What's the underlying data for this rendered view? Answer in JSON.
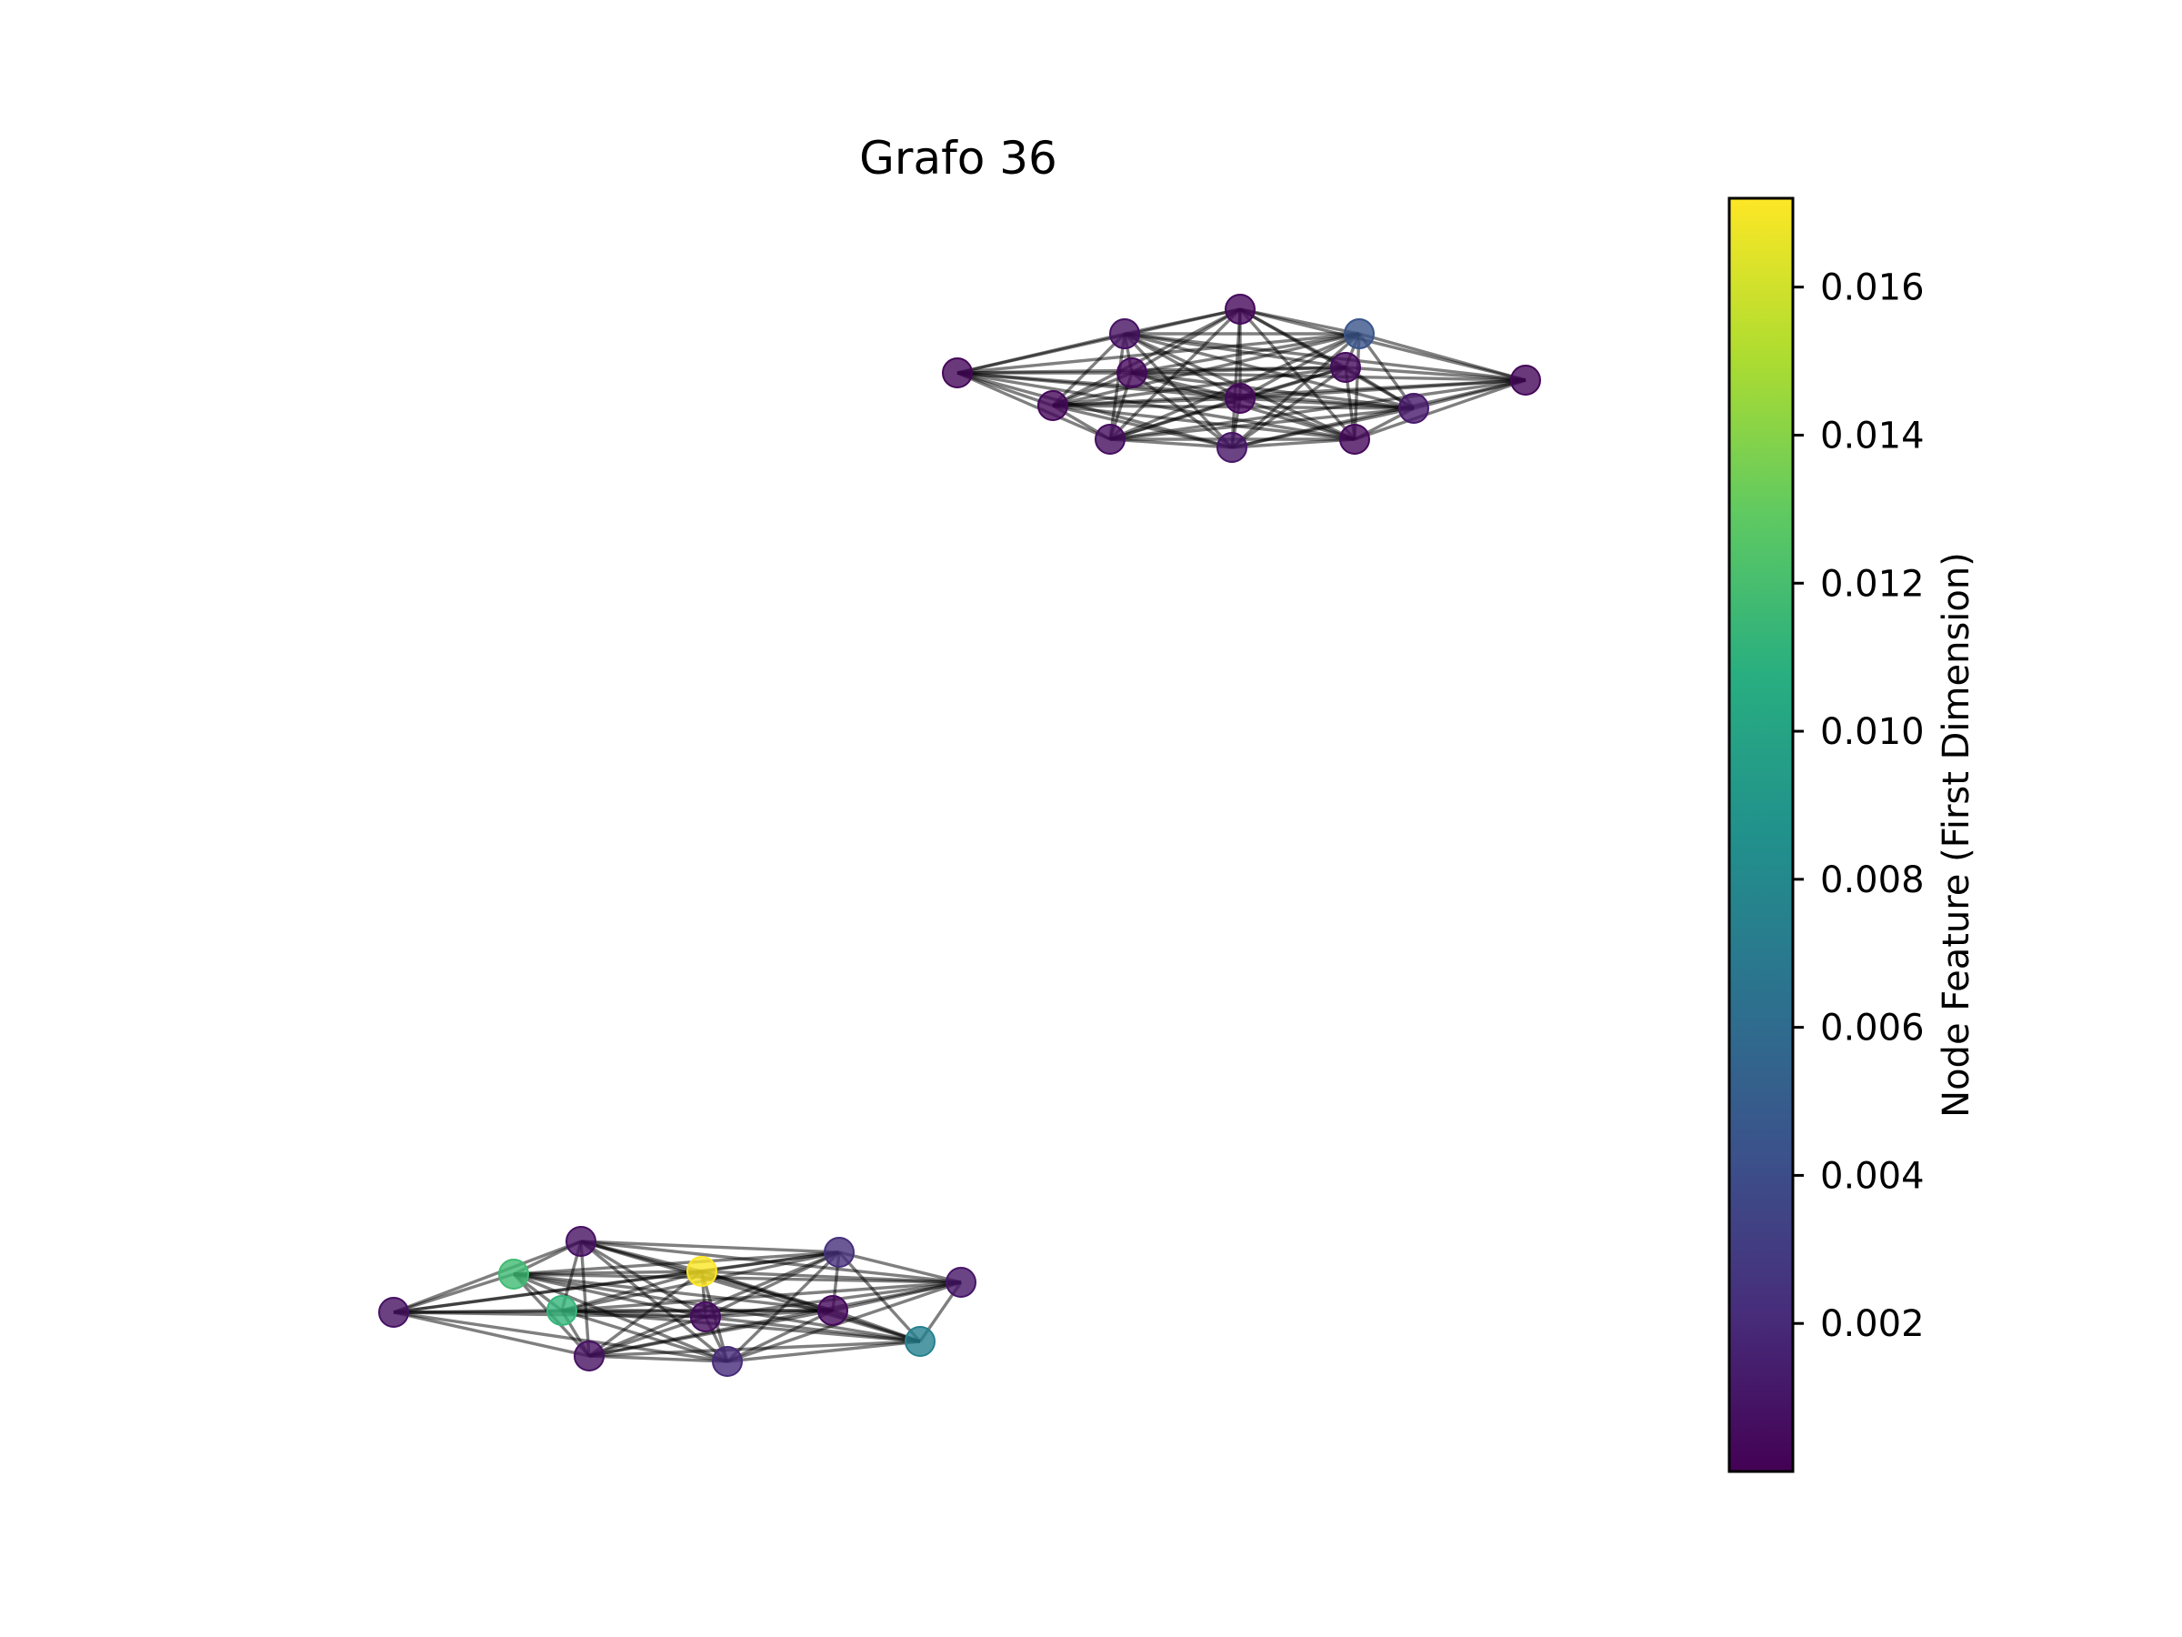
{
  "title": "Grafo 36",
  "colorbar": {
    "label": "Node Feature (First Dimension)",
    "colormap": "viridis",
    "min": 0.0,
    "max": 0.0172,
    "ticks": [
      0.002,
      0.004,
      0.006,
      0.008,
      0.01,
      0.012,
      0.014,
      0.016
    ],
    "tick_labels": [
      "0.002",
      "0.004",
      "0.006",
      "0.008",
      "0.010",
      "0.012",
      "0.014",
      "0.016"
    ]
  },
  "graph": {
    "node_feature_colors": "viridis",
    "components": [
      {
        "name": "upper-cluster",
        "nodes": [
          {
            "id": "a0",
            "feature": 0.0003
          },
          {
            "id": "a1",
            "feature": 0.0008
          },
          {
            "id": "a2",
            "feature": 0.0004
          },
          {
            "id": "a3",
            "feature": 0.0045
          },
          {
            "id": "a4",
            "feature": 0.0003
          },
          {
            "id": "a5",
            "feature": 0.0004
          },
          {
            "id": "a6",
            "feature": 0.0005
          },
          {
            "id": "a7",
            "feature": 0.0003
          },
          {
            "id": "a8",
            "feature": 0.0004
          },
          {
            "id": "a9",
            "feature": 0.0012
          },
          {
            "id": "a10",
            "feature": 0.0006
          },
          {
            "id": "a11",
            "feature": 0.001
          },
          {
            "id": "a12",
            "feature": 0.0004
          }
        ]
      },
      {
        "name": "lower-cluster",
        "nodes": [
          {
            "id": "b0",
            "feature": 0.0008
          },
          {
            "id": "b1",
            "feature": 0.0008
          },
          {
            "id": "b2",
            "feature": 0.0023
          },
          {
            "id": "b3",
            "feature": 0.0118
          },
          {
            "id": "b4",
            "feature": 0.0172
          },
          {
            "id": "b5",
            "feature": 0.001
          },
          {
            "id": "b6",
            "feature": 0.0114
          },
          {
            "id": "b7",
            "feature": 0.0006
          },
          {
            "id": "b8",
            "feature": 0.0004
          },
          {
            "id": "b9",
            "feature": 0.0008
          },
          {
            "id": "b10",
            "feature": 0.0021
          },
          {
            "id": "b11",
            "feature": 0.0076
          }
        ]
      }
    ]
  }
}
